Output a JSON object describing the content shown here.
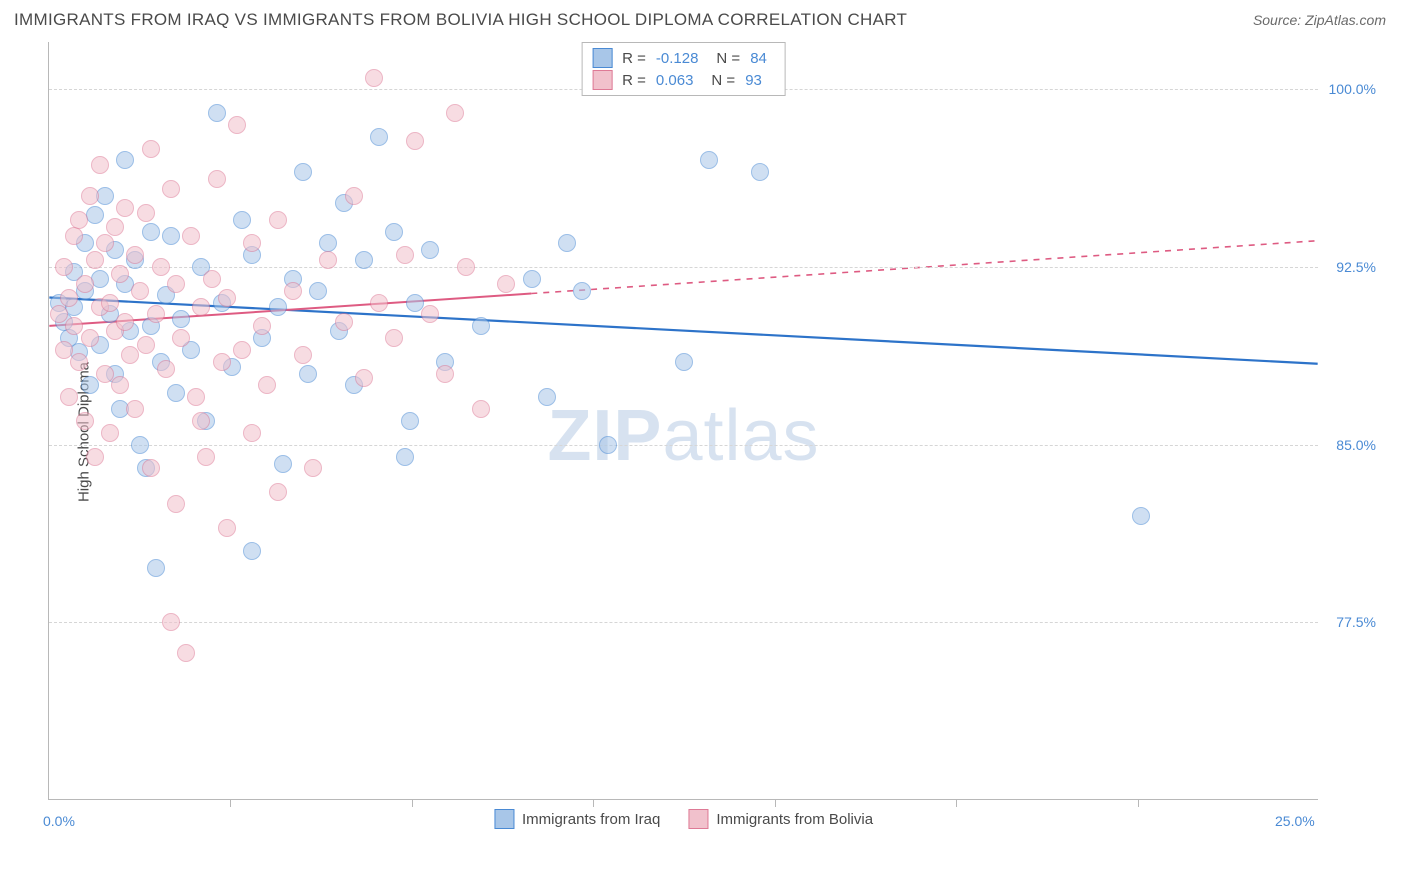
{
  "title": "IMMIGRANTS FROM IRAQ VS IMMIGRANTS FROM BOLIVIA HIGH SCHOOL DIPLOMA CORRELATION CHART",
  "source": "Source: ZipAtlas.com",
  "watermark": "ZIPatlas",
  "chart": {
    "type": "scatter",
    "background_color": "#ffffff",
    "grid_color": "#d6d6d6",
    "axis_color": "#b8b8b8",
    "label_color": "#4a8ad4",
    "text_color": "#4a4a4a",
    "y_axis_title": "High School Diploma",
    "xlim": [
      0,
      25
    ],
    "ylim": [
      70,
      102
    ],
    "x_ticks": [
      0,
      25
    ],
    "x_tick_labels": [
      "0.0%",
      "25.0%"
    ],
    "y_ticks": [
      77.5,
      85.0,
      92.5,
      100.0
    ],
    "y_tick_labels": [
      "77.5%",
      "85.0%",
      "92.5%",
      "100.0%"
    ],
    "x_minor_ticks": [
      3.57,
      7.14,
      10.71,
      14.29,
      17.86,
      21.43
    ],
    "marker_radius": 9,
    "marker_opacity": 0.55,
    "marker_stroke_width": 1.2,
    "series": [
      {
        "name": "Immigrants from Iraq",
        "fill": "#a8c6e8",
        "stroke": "#4a8ad4",
        "R": "-0.128",
        "N": "84",
        "trend": {
          "x0": 0,
          "y0": 91.2,
          "x1": 25,
          "y1": 88.4,
          "stroke": "#2d73c9",
          "width": 2.2,
          "solid_until_x": 25
        },
        "points": [
          [
            0.2,
            91.0
          ],
          [
            0.3,
            90.2
          ],
          [
            0.4,
            89.5
          ],
          [
            0.5,
            92.3
          ],
          [
            0.5,
            90.8
          ],
          [
            0.6,
            88.9
          ],
          [
            0.7,
            93.5
          ],
          [
            0.7,
            91.5
          ],
          [
            0.8,
            87.5
          ],
          [
            0.9,
            94.7
          ],
          [
            1.0,
            89.2
          ],
          [
            1.0,
            92.0
          ],
          [
            1.1,
            95.5
          ],
          [
            1.2,
            90.5
          ],
          [
            1.3,
            88.0
          ],
          [
            1.3,
            93.2
          ],
          [
            1.4,
            86.5
          ],
          [
            1.5,
            91.8
          ],
          [
            1.5,
            97.0
          ],
          [
            1.6,
            89.8
          ],
          [
            1.7,
            92.8
          ],
          [
            1.8,
            85.0
          ],
          [
            1.9,
            84.0
          ],
          [
            2.0,
            90.0
          ],
          [
            2.0,
            94.0
          ],
          [
            2.1,
            79.8
          ],
          [
            2.2,
            88.5
          ],
          [
            2.3,
            91.3
          ],
          [
            2.4,
            93.8
          ],
          [
            2.5,
            87.2
          ],
          [
            2.6,
            90.3
          ],
          [
            2.8,
            89.0
          ],
          [
            3.0,
            92.5
          ],
          [
            3.1,
            86.0
          ],
          [
            3.3,
            99.0
          ],
          [
            3.4,
            91.0
          ],
          [
            3.6,
            88.3
          ],
          [
            3.8,
            94.5
          ],
          [
            4.0,
            93.0
          ],
          [
            4.0,
            80.5
          ],
          [
            4.2,
            89.5
          ],
          [
            4.5,
            90.8
          ],
          [
            4.6,
            84.2
          ],
          [
            4.8,
            92.0
          ],
          [
            5.0,
            96.5
          ],
          [
            5.1,
            88.0
          ],
          [
            5.3,
            91.5
          ],
          [
            5.5,
            93.5
          ],
          [
            5.7,
            89.8
          ],
          [
            5.8,
            95.2
          ],
          [
            6.0,
            87.5
          ],
          [
            6.2,
            92.8
          ],
          [
            6.5,
            98.0
          ],
          [
            6.8,
            94.0
          ],
          [
            7.0,
            84.5
          ],
          [
            7.1,
            86.0
          ],
          [
            7.2,
            91.0
          ],
          [
            7.5,
            93.2
          ],
          [
            7.8,
            88.5
          ],
          [
            8.5,
            90.0
          ],
          [
            9.5,
            92.0
          ],
          [
            9.8,
            87.0
          ],
          [
            10.2,
            93.5
          ],
          [
            10.5,
            91.5
          ],
          [
            11.0,
            85.0
          ],
          [
            12.5,
            88.5
          ],
          [
            13.0,
            97.0
          ],
          [
            14.0,
            96.5
          ],
          [
            21.5,
            82.0
          ]
        ]
      },
      {
        "name": "Immigrants from Bolivia",
        "fill": "#f1c1cc",
        "stroke": "#de7a96",
        "R": "0.063",
        "N": "93",
        "trend": {
          "x0": 0,
          "y0": 90.0,
          "x1": 25,
          "y1": 93.6,
          "stroke": "#de5b82",
          "width": 2.0,
          "solid_until_x": 9.5
        },
        "points": [
          [
            0.2,
            90.5
          ],
          [
            0.3,
            89.0
          ],
          [
            0.3,
            92.5
          ],
          [
            0.4,
            91.2
          ],
          [
            0.4,
            87.0
          ],
          [
            0.5,
            93.8
          ],
          [
            0.5,
            90.0
          ],
          [
            0.6,
            88.5
          ],
          [
            0.6,
            94.5
          ],
          [
            0.7,
            91.8
          ],
          [
            0.7,
            86.0
          ],
          [
            0.8,
            95.5
          ],
          [
            0.8,
            89.5
          ],
          [
            0.9,
            92.8
          ],
          [
            0.9,
            84.5
          ],
          [
            1.0,
            90.8
          ],
          [
            1.0,
            96.8
          ],
          [
            1.1,
            88.0
          ],
          [
            1.1,
            93.5
          ],
          [
            1.2,
            91.0
          ],
          [
            1.2,
            85.5
          ],
          [
            1.3,
            94.2
          ],
          [
            1.3,
            89.8
          ],
          [
            1.4,
            92.2
          ],
          [
            1.4,
            87.5
          ],
          [
            1.5,
            90.2
          ],
          [
            1.5,
            95.0
          ],
          [
            1.6,
            88.8
          ],
          [
            1.7,
            93.0
          ],
          [
            1.7,
            86.5
          ],
          [
            1.8,
            91.5
          ],
          [
            1.9,
            89.2
          ],
          [
            1.9,
            94.8
          ],
          [
            2.0,
            97.5
          ],
          [
            2.0,
            84.0
          ],
          [
            2.1,
            90.5
          ],
          [
            2.2,
            92.5
          ],
          [
            2.3,
            88.2
          ],
          [
            2.4,
            95.8
          ],
          [
            2.4,
            77.5
          ],
          [
            2.5,
            82.5
          ],
          [
            2.5,
            91.8
          ],
          [
            2.6,
            89.5
          ],
          [
            2.7,
            76.2
          ],
          [
            2.8,
            93.8
          ],
          [
            2.9,
            87.0
          ],
          [
            3.0,
            86.0
          ],
          [
            3.0,
            90.8
          ],
          [
            3.1,
            84.5
          ],
          [
            3.2,
            92.0
          ],
          [
            3.3,
            96.2
          ],
          [
            3.4,
            88.5
          ],
          [
            3.5,
            81.5
          ],
          [
            3.5,
            91.2
          ],
          [
            3.7,
            98.5
          ],
          [
            3.8,
            89.0
          ],
          [
            4.0,
            93.5
          ],
          [
            4.0,
            85.5
          ],
          [
            4.2,
            90.0
          ],
          [
            4.3,
            87.5
          ],
          [
            4.5,
            94.5
          ],
          [
            4.5,
            83.0
          ],
          [
            4.8,
            91.5
          ],
          [
            5.0,
            88.8
          ],
          [
            5.2,
            84.0
          ],
          [
            5.5,
            92.8
          ],
          [
            5.8,
            90.2
          ],
          [
            6.0,
            95.5
          ],
          [
            6.2,
            87.8
          ],
          [
            6.4,
            100.5
          ],
          [
            6.5,
            91.0
          ],
          [
            6.8,
            89.5
          ],
          [
            7.0,
            93.0
          ],
          [
            7.2,
            97.8
          ],
          [
            7.5,
            90.5
          ],
          [
            7.8,
            88.0
          ],
          [
            8.0,
            99.0
          ],
          [
            8.2,
            92.5
          ],
          [
            8.5,
            86.5
          ],
          [
            9.0,
            91.8
          ]
        ]
      }
    ]
  },
  "legend_bottom": [
    {
      "label": "Immigrants from Iraq",
      "fill": "#a8c6e8",
      "stroke": "#4a8ad4"
    },
    {
      "label": "Immigrants from Bolivia",
      "fill": "#f1c1cc",
      "stroke": "#de7a96"
    }
  ]
}
